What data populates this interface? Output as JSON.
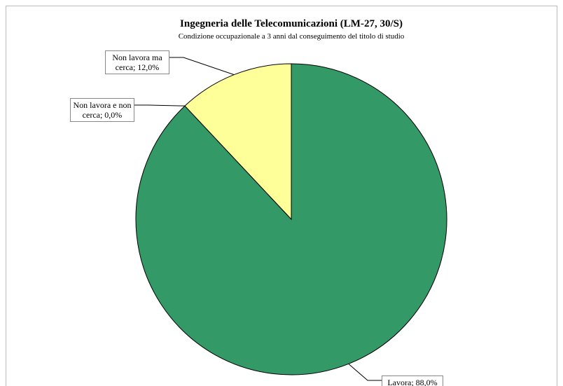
{
  "chart_data": {
    "type": "pie",
    "title": "Ingegneria delle Telecomunicazioni (LM-27, 30/S)",
    "subtitle": "Condizione occupazionale a 3 anni dal conseguimento del titolo di studio",
    "values": [
      88.0,
      0.0,
      12.0
    ],
    "value_labels": [
      "Lavora; 88,0%",
      "Non lavora e non cerca; 0,0%",
      "Non lavora ma cerca; 12,0%"
    ],
    "colors": [
      "#339966",
      "#ffff99",
      "#ffff99"
    ]
  }
}
